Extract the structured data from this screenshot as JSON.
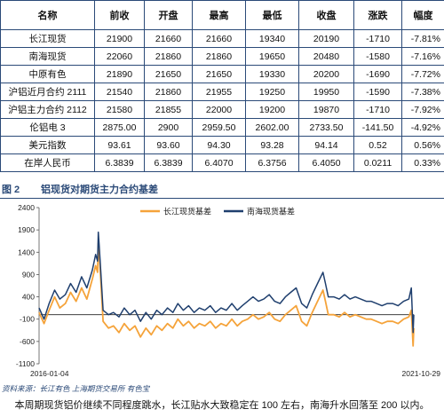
{
  "table": {
    "headers": [
      "名称",
      "前收",
      "开盘",
      "最高",
      "最低",
      "收盘",
      "涨跌",
      "幅度"
    ],
    "rows": [
      [
        "长江现货",
        "21900",
        "21660",
        "21660",
        "19340",
        "20190",
        "-1710",
        "-7.81%"
      ],
      [
        "南海现货",
        "22060",
        "21860",
        "21860",
        "19650",
        "20480",
        "-1580",
        "-7.16%"
      ],
      [
        "中原有色",
        "21890",
        "21650",
        "21650",
        "19330",
        "20200",
        "-1690",
        "-7.72%"
      ],
      [
        "沪铝近月合约 2111",
        "21540",
        "21860",
        "21955",
        "19250",
        "19950",
        "-1590",
        "-7.38%"
      ],
      [
        "沪铝主力合约 2112",
        "21580",
        "21855",
        "22000",
        "19200",
        "19870",
        "-1710",
        "-7.92%"
      ],
      [
        "伦铝电 3",
        "2875.00",
        "2900",
        "2959.50",
        "2602.00",
        "2733.50",
        "-141.50",
        "-4.92%"
      ],
      [
        "美元指数",
        "93.61",
        "93.60",
        "94.30",
        "93.28",
        "94.14",
        "0.52",
        "0.56%"
      ],
      [
        "在岸人民币",
        "6.3839",
        "6.3839",
        "6.4070",
        "6.3756",
        "6.4050",
        "0.0211",
        "0.33%"
      ]
    ]
  },
  "figure": {
    "number": "图 2",
    "title": "铝现货对期货主力合约基差"
  },
  "chart_data": {
    "type": "line",
    "y_ticks": [
      "2400",
      "1900",
      "1400",
      "900",
      "400",
      "-100",
      "-600",
      "-1100"
    ],
    "ylim": [
      -1100,
      2400
    ],
    "x_labels": [
      "2016-01-04",
      "2021-10-29"
    ],
    "xlim": [
      "2016-01-04",
      "2021-10-29"
    ],
    "grid": false,
    "legend_position": "top-center",
    "series": [
      {
        "name": "长江现货基差",
        "color": "#f5a33a",
        "points": [
          [
            "2016-01-04",
            50
          ],
          [
            "2016-02-01",
            -200
          ],
          [
            "2016-03-01",
            100
          ],
          [
            "2016-04-01",
            400
          ],
          [
            "2016-05-01",
            150
          ],
          [
            "2016-06-01",
            250
          ],
          [
            "2016-07-01",
            500
          ],
          [
            "2016-08-01",
            300
          ],
          [
            "2016-09-01",
            600
          ],
          [
            "2016-10-01",
            350
          ],
          [
            "2016-11-01",
            800
          ],
          [
            "2016-11-20",
            1100
          ],
          [
            "2016-12-01",
            950
          ],
          [
            "2016-12-05",
            1600
          ],
          [
            "2016-12-10",
            1400
          ],
          [
            "2016-12-20",
            700
          ],
          [
            "2017-01-01",
            -150
          ],
          [
            "2017-02-01",
            -300
          ],
          [
            "2017-03-01",
            -250
          ],
          [
            "2017-04-01",
            -400
          ],
          [
            "2017-05-01",
            -200
          ],
          [
            "2017-06-01",
            -350
          ],
          [
            "2017-07-01",
            -250
          ],
          [
            "2017-08-01",
            -500
          ],
          [
            "2017-09-01",
            -300
          ],
          [
            "2017-10-01",
            -450
          ],
          [
            "2017-11-01",
            -250
          ],
          [
            "2017-12-01",
            -350
          ],
          [
            "2018-01-01",
            -200
          ],
          [
            "2018-02-01",
            -300
          ],
          [
            "2018-03-01",
            -100
          ],
          [
            "2018-04-01",
            -250
          ],
          [
            "2018-05-01",
            -150
          ],
          [
            "2018-06-01",
            -300
          ],
          [
            "2018-07-01",
            -200
          ],
          [
            "2018-08-01",
            -250
          ],
          [
            "2018-09-01",
            -150
          ],
          [
            "2018-10-01",
            -300
          ],
          [
            "2018-11-01",
            -200
          ],
          [
            "2018-12-01",
            -250
          ],
          [
            "2019-01-01",
            -100
          ],
          [
            "2019-02-01",
            -250
          ],
          [
            "2019-03-01",
            -150
          ],
          [
            "2019-04-01",
            -100
          ],
          [
            "2019-05-01",
            0
          ],
          [
            "2019-06-01",
            -100
          ],
          [
            "2019-07-01",
            -50
          ],
          [
            "2019-08-01",
            50
          ],
          [
            "2019-09-01",
            -100
          ],
          [
            "2019-10-01",
            -150
          ],
          [
            "2019-11-01",
            0
          ],
          [
            "2019-12-01",
            100
          ],
          [
            "2020-01-01",
            200
          ],
          [
            "2020-02-01",
            -150
          ],
          [
            "2020-03-01",
            -250
          ],
          [
            "2020-04-01",
            50
          ],
          [
            "2020-05-01",
            300
          ],
          [
            "2020-06-01",
            550
          ],
          [
            "2020-06-15",
            300
          ],
          [
            "2020-07-01",
            0
          ],
          [
            "2020-08-01",
            0
          ],
          [
            "2020-09-01",
            -50
          ],
          [
            "2020-10-01",
            50
          ],
          [
            "2020-11-01",
            -50
          ],
          [
            "2020-12-01",
            0
          ],
          [
            "2021-01-01",
            -50
          ],
          [
            "2021-02-01",
            -100
          ],
          [
            "2021-03-01",
            -100
          ],
          [
            "2021-04-01",
            -150
          ],
          [
            "2021-05-01",
            -200
          ],
          [
            "2021-06-01",
            -150
          ],
          [
            "2021-07-01",
            -150
          ],
          [
            "2021-08-01",
            -200
          ],
          [
            "2021-09-01",
            -100
          ],
          [
            "2021-10-01",
            -50
          ],
          [
            "2021-10-15",
            100
          ],
          [
            "2021-10-25",
            -700
          ],
          [
            "2021-10-29",
            -300
          ]
        ]
      },
      {
        "name": "南海现货基差",
        "color": "#1f3f6e",
        "points": [
          [
            "2016-01-04",
            150
          ],
          [
            "2016-02-01",
            -100
          ],
          [
            "2016-03-01",
            250
          ],
          [
            "2016-04-01",
            550
          ],
          [
            "2016-05-01",
            350
          ],
          [
            "2016-06-01",
            450
          ],
          [
            "2016-07-01",
            700
          ],
          [
            "2016-08-01",
            500
          ],
          [
            "2016-09-01",
            850
          ],
          [
            "2016-10-01",
            600
          ],
          [
            "2016-11-01",
            1000
          ],
          [
            "2016-11-20",
            1350
          ],
          [
            "2016-12-01",
            1200
          ],
          [
            "2016-12-05",
            1850
          ],
          [
            "2016-12-10",
            1550
          ],
          [
            "2016-12-20",
            900
          ],
          [
            "2017-01-01",
            100
          ],
          [
            "2017-02-01",
            0
          ],
          [
            "2017-03-01",
            50
          ],
          [
            "2017-04-01",
            -50
          ],
          [
            "2017-05-01",
            150
          ],
          [
            "2017-06-01",
            0
          ],
          [
            "2017-07-01",
            100
          ],
          [
            "2017-08-01",
            -150
          ],
          [
            "2017-09-01",
            50
          ],
          [
            "2017-10-01",
            -100
          ],
          [
            "2017-11-01",
            100
          ],
          [
            "2017-12-01",
            0
          ],
          [
            "2018-01-01",
            150
          ],
          [
            "2018-02-01",
            50
          ],
          [
            "2018-03-01",
            250
          ],
          [
            "2018-04-01",
            100
          ],
          [
            "2018-05-01",
            200
          ],
          [
            "2018-06-01",
            50
          ],
          [
            "2018-07-01",
            150
          ],
          [
            "2018-08-01",
            100
          ],
          [
            "2018-09-01",
            200
          ],
          [
            "2018-10-01",
            50
          ],
          [
            "2018-11-01",
            150
          ],
          [
            "2018-12-01",
            100
          ],
          [
            "2019-01-01",
            250
          ],
          [
            "2019-02-01",
            100
          ],
          [
            "2019-03-01",
            200
          ],
          [
            "2019-04-01",
            300
          ],
          [
            "2019-05-01",
            400
          ],
          [
            "2019-06-01",
            300
          ],
          [
            "2019-07-01",
            350
          ],
          [
            "2019-08-01",
            450
          ],
          [
            "2019-09-01",
            300
          ],
          [
            "2019-10-01",
            250
          ],
          [
            "2019-11-01",
            400
          ],
          [
            "2019-12-01",
            500
          ],
          [
            "2020-01-01",
            600
          ],
          [
            "2020-02-01",
            250
          ],
          [
            "2020-03-01",
            150
          ],
          [
            "2020-04-01",
            450
          ],
          [
            "2020-05-01",
            700
          ],
          [
            "2020-06-01",
            950
          ],
          [
            "2020-06-15",
            700
          ],
          [
            "2020-07-01",
            400
          ],
          [
            "2020-08-01",
            400
          ],
          [
            "2020-09-01",
            350
          ],
          [
            "2020-10-01",
            450
          ],
          [
            "2020-11-01",
            350
          ],
          [
            "2020-12-01",
            400
          ],
          [
            "2021-01-01",
            350
          ],
          [
            "2021-02-01",
            300
          ],
          [
            "2021-03-01",
            300
          ],
          [
            "2021-04-01",
            250
          ],
          [
            "2021-05-01",
            200
          ],
          [
            "2021-06-01",
            250
          ],
          [
            "2021-07-01",
            250
          ],
          [
            "2021-08-01",
            200
          ],
          [
            "2021-09-01",
            300
          ],
          [
            "2021-10-01",
            350
          ],
          [
            "2021-10-15",
            600
          ],
          [
            "2021-10-25",
            -400
          ],
          [
            "2021-10-29",
            0
          ]
        ]
      }
    ]
  },
  "source": "资料来源：长江有色    上海期货交易所    有色宝",
  "note": "本周期现货铝价继续不同程度跳水，长江贴水大致稳定在 100 左右，南海升水回落至 200 以内。"
}
